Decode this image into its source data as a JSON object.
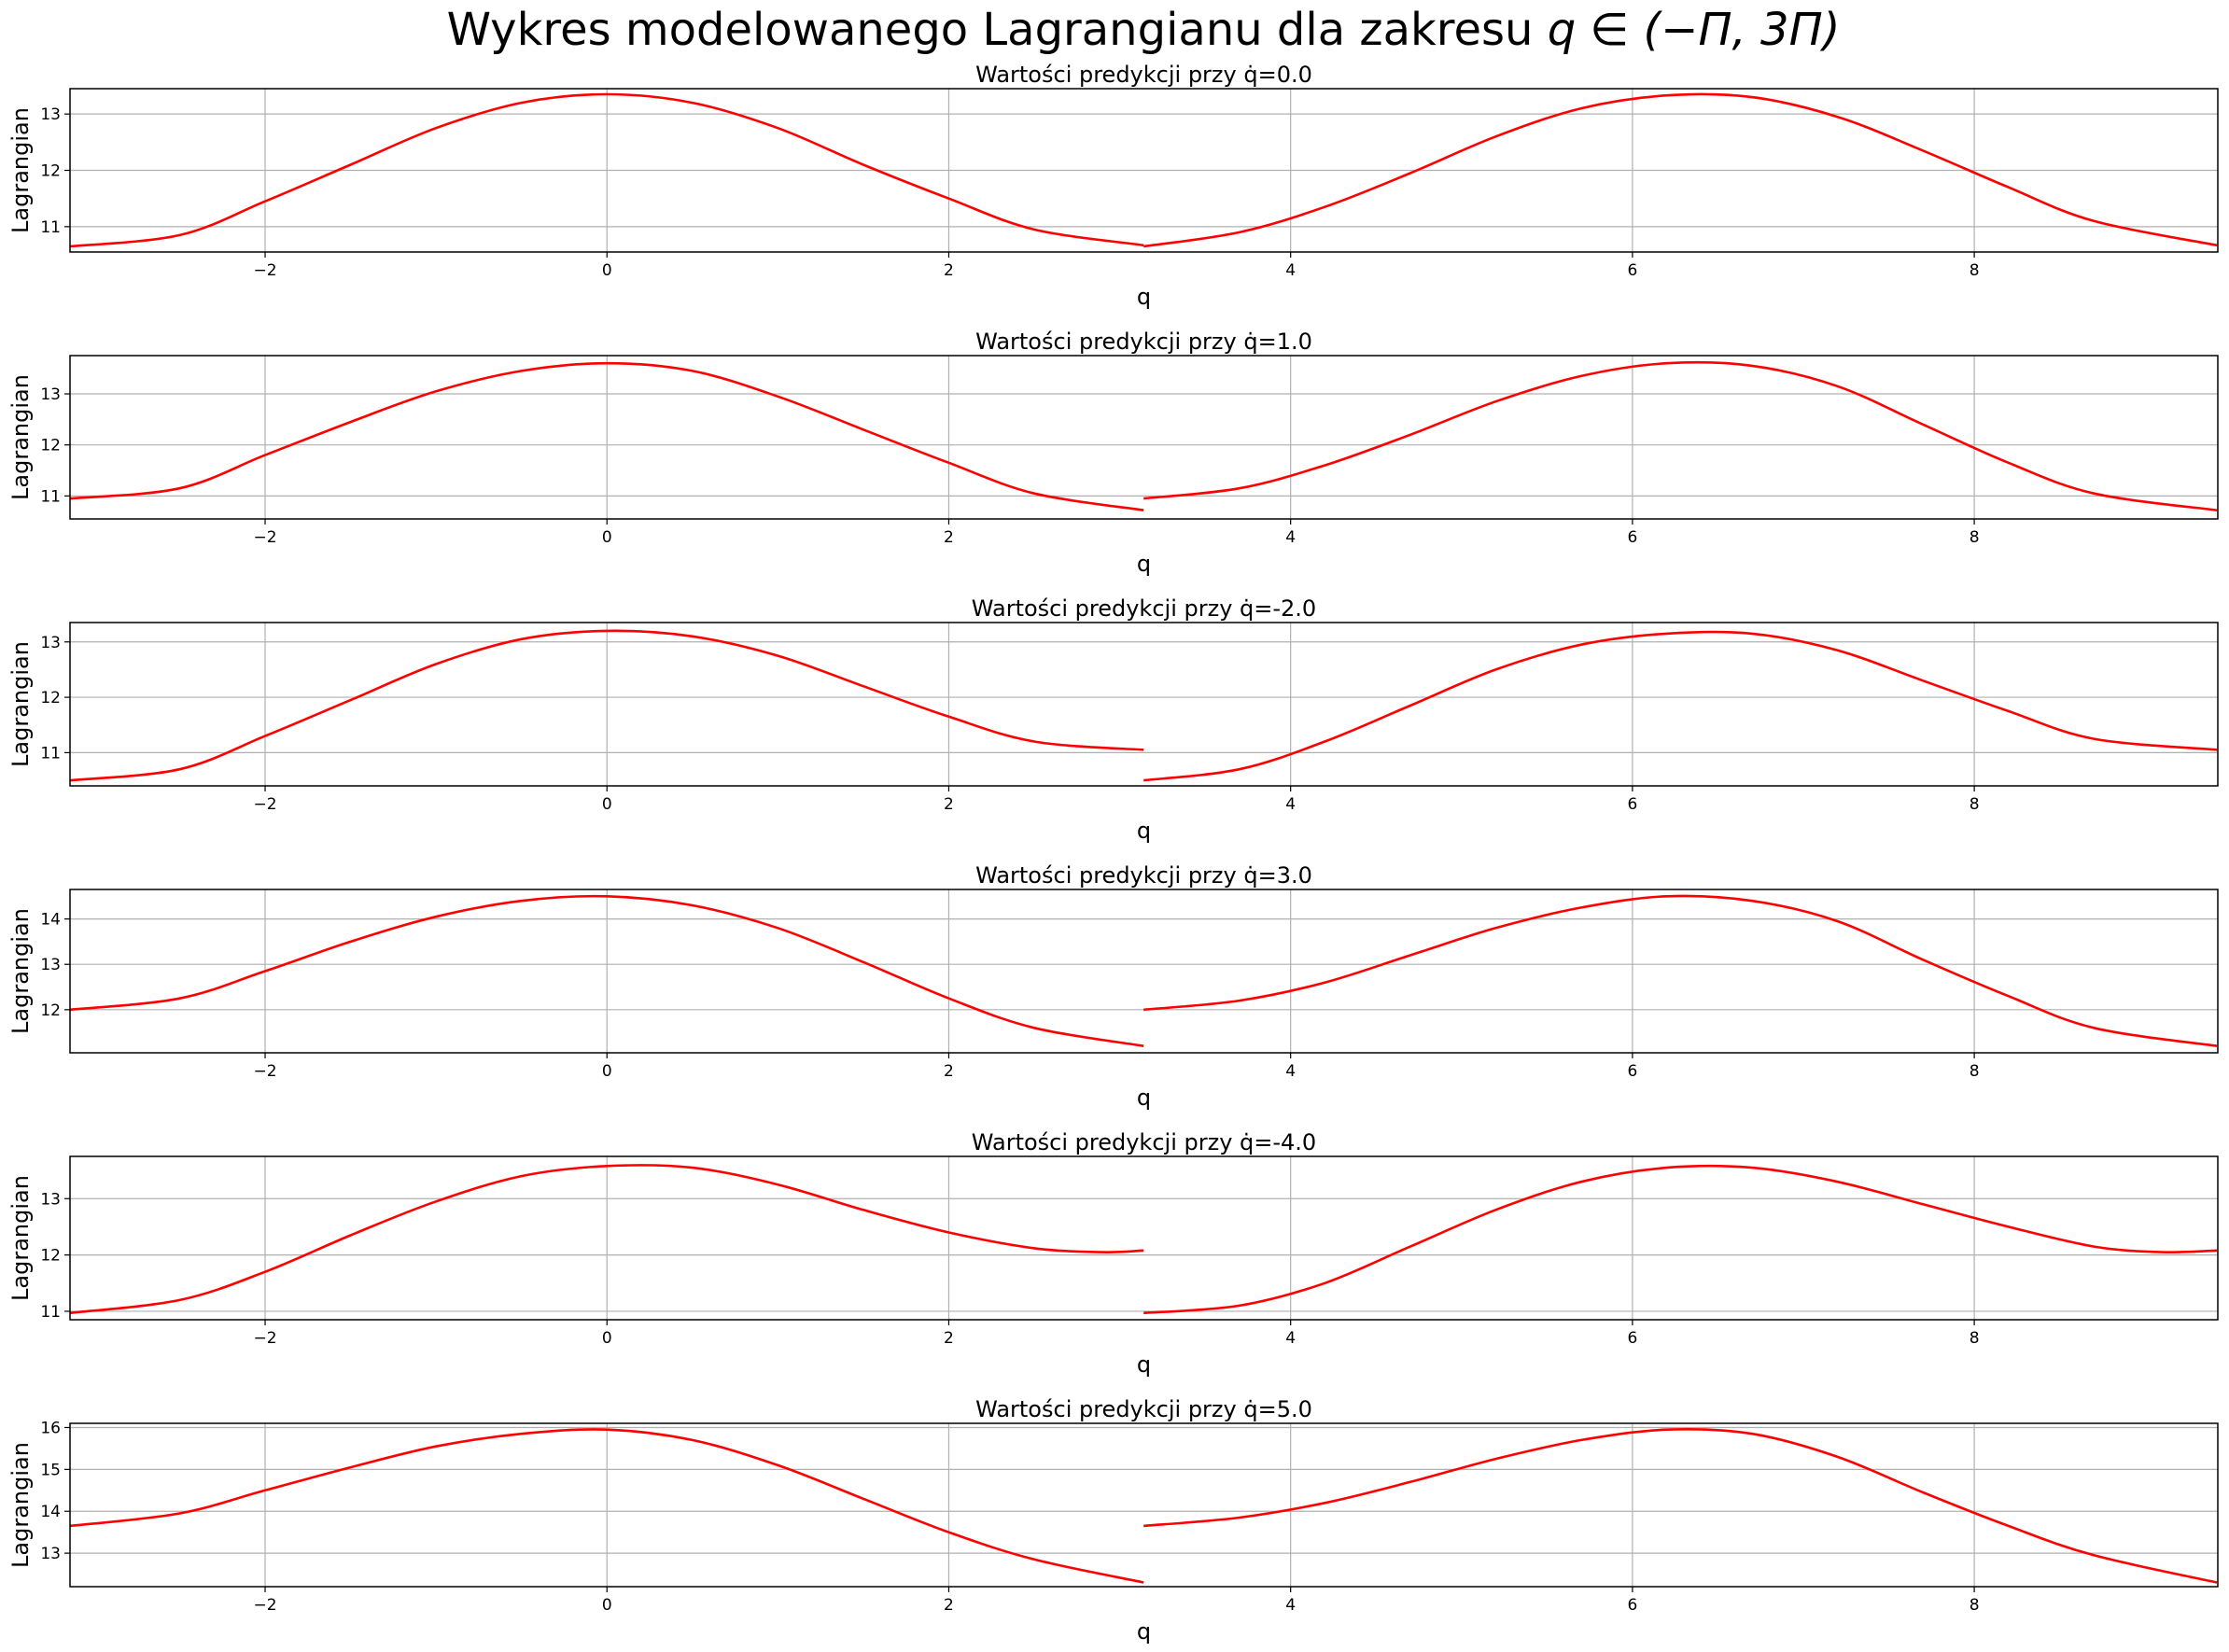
{
  "figure": {
    "title_prefix": "Wykres modelowanego Lagrangianu dla zakresu ",
    "title_math": "q ∈ (−Π, 3Π)",
    "line_color": "#ff0000"
  },
  "chart_data": [
    {
      "type": "line",
      "title": "Wartości predykcji przy q̇=0.0",
      "xlabel": "q",
      "ylabel": "Lagrangian",
      "xlim": [
        -3.1416,
        9.4248
      ],
      "ylim": [
        10.55,
        13.45
      ],
      "xticks": [
        -2,
        0,
        2,
        4,
        6,
        8
      ],
      "xtick_labels": [
        "−2",
        "0",
        "2",
        "4",
        "6",
        "8"
      ],
      "yticks": [
        11,
        12,
        13
      ],
      "ytick_labels": [
        "11",
        "12",
        "13"
      ],
      "grid": true,
      "legend": "none",
      "series": [
        {
          "x": [
            -3.14,
            -2.5,
            -2.0,
            -1.5,
            -1.0,
            -0.5,
            0.0,
            0.5,
            1.0,
            1.5,
            2.0,
            2.5,
            3.14
          ],
          "y": [
            10.65,
            10.85,
            11.45,
            12.1,
            12.75,
            13.2,
            13.35,
            13.2,
            12.75,
            12.1,
            11.5,
            10.95,
            10.67
          ]
        },
        {
          "x": [
            3.14,
            3.7,
            4.2,
            4.7,
            5.2,
            5.7,
            6.2,
            6.7,
            7.2,
            7.7,
            8.2,
            8.7,
            9.42
          ],
          "y": [
            10.65,
            10.9,
            11.35,
            11.95,
            12.6,
            13.1,
            13.33,
            13.3,
            12.95,
            12.35,
            11.7,
            11.1,
            10.67
          ]
        }
      ]
    },
    {
      "type": "line",
      "title": "Wartości predykcji przy q̇=1.0",
      "xlabel": "q",
      "ylabel": "Lagrangian",
      "xlim": [
        -3.1416,
        9.4248
      ],
      "ylim": [
        10.55,
        13.75
      ],
      "xticks": [
        -2,
        0,
        2,
        4,
        6,
        8
      ],
      "xtick_labels": [
        "−2",
        "0",
        "2",
        "4",
        "6",
        "8"
      ],
      "yticks": [
        11,
        12,
        13
      ],
      "ytick_labels": [
        "11",
        "12",
        "13"
      ],
      "grid": true,
      "legend": "none",
      "series": [
        {
          "x": [
            -3.14,
            -2.5,
            -2.0,
            -1.5,
            -1.0,
            -0.5,
            0.0,
            0.5,
            1.0,
            1.5,
            2.0,
            2.5,
            3.14
          ],
          "y": [
            10.95,
            11.15,
            11.8,
            12.45,
            13.05,
            13.45,
            13.6,
            13.45,
            12.95,
            12.3,
            11.65,
            11.05,
            10.72
          ]
        },
        {
          "x": [
            3.14,
            3.7,
            4.2,
            4.7,
            5.2,
            5.7,
            6.2,
            6.7,
            7.2,
            7.7,
            8.2,
            8.7,
            9.42
          ],
          "y": [
            10.95,
            11.15,
            11.6,
            12.2,
            12.85,
            13.35,
            13.6,
            13.55,
            13.15,
            12.4,
            11.65,
            11.05,
            10.72
          ]
        }
      ]
    },
    {
      "type": "line",
      "title": "Wartości predykcji przy q̇=-2.0",
      "xlabel": "q",
      "ylabel": "Lagrangian",
      "xlim": [
        -3.1416,
        9.4248
      ],
      "ylim": [
        10.4,
        13.35
      ],
      "xticks": [
        -2,
        0,
        2,
        4,
        6,
        8
      ],
      "xtick_labels": [
        "−2",
        "0",
        "2",
        "4",
        "6",
        "8"
      ],
      "yticks": [
        11,
        12,
        13
      ],
      "ytick_labels": [
        "11",
        "12",
        "13"
      ],
      "grid": true,
      "legend": "none",
      "series": [
        {
          "x": [
            -3.14,
            -2.5,
            -2.0,
            -1.5,
            -1.0,
            -0.5,
            0.0,
            0.5,
            1.0,
            1.5,
            2.0,
            2.5,
            3.14
          ],
          "y": [
            10.5,
            10.7,
            11.3,
            11.95,
            12.6,
            13.05,
            13.2,
            13.1,
            12.75,
            12.2,
            11.65,
            11.2,
            11.05
          ]
        },
        {
          "x": [
            3.14,
            3.7,
            4.2,
            4.7,
            5.2,
            5.7,
            6.2,
            6.7,
            7.2,
            7.7,
            8.2,
            8.7,
            9.42
          ],
          "y": [
            10.5,
            10.7,
            11.2,
            11.85,
            12.5,
            12.95,
            13.15,
            13.15,
            12.85,
            12.3,
            11.75,
            11.25,
            11.05
          ]
        }
      ]
    },
    {
      "type": "line",
      "title": "Wartości predykcji przy q̇=3.0",
      "xlabel": "q",
      "ylabel": "Lagrangian",
      "xlim": [
        -3.1416,
        9.4248
      ],
      "ylim": [
        11.05,
        14.65
      ],
      "xticks": [
        -2,
        0,
        2,
        4,
        6,
        8
      ],
      "xtick_labels": [
        "−2",
        "0",
        "2",
        "4",
        "6",
        "8"
      ],
      "yticks": [
        12,
        13,
        14
      ],
      "ytick_labels": [
        "12",
        "13",
        "14"
      ],
      "grid": true,
      "legend": "none",
      "series": [
        {
          "x": [
            -3.14,
            -2.5,
            -2.0,
            -1.5,
            -1.0,
            -0.5,
            0.0,
            0.5,
            1.0,
            1.5,
            2.0,
            2.5,
            3.14
          ],
          "y": [
            12.0,
            12.25,
            12.85,
            13.5,
            14.05,
            14.4,
            14.5,
            14.3,
            13.8,
            13.05,
            12.25,
            11.6,
            11.2
          ]
        },
        {
          "x": [
            3.14,
            3.7,
            4.2,
            4.7,
            5.2,
            5.7,
            6.2,
            6.7,
            7.2,
            7.7,
            8.2,
            8.7,
            9.42
          ],
          "y": [
            12.0,
            12.2,
            12.6,
            13.2,
            13.8,
            14.25,
            14.5,
            14.4,
            13.95,
            13.1,
            12.3,
            11.6,
            11.2
          ]
        }
      ]
    },
    {
      "type": "line",
      "title": "Wartości predykcji przy q̇=-4.0",
      "xlabel": "q",
      "ylabel": "Lagrangian",
      "xlim": [
        -3.1416,
        9.4248
      ],
      "ylim": [
        10.85,
        13.75
      ],
      "xticks": [
        -2,
        0,
        2,
        4,
        6,
        8
      ],
      "xtick_labels": [
        "−2",
        "0",
        "2",
        "4",
        "6",
        "8"
      ],
      "yticks": [
        11,
        12,
        13
      ],
      "ytick_labels": [
        "11",
        "12",
        "13"
      ],
      "grid": true,
      "legend": "none",
      "series": [
        {
          "x": [
            -3.14,
            -2.5,
            -2.0,
            -1.5,
            -1.0,
            -0.5,
            0.0,
            0.5,
            1.0,
            1.5,
            2.0,
            2.5,
            2.9,
            3.14
          ],
          "y": [
            10.97,
            11.2,
            11.7,
            12.35,
            12.95,
            13.4,
            13.58,
            13.55,
            13.25,
            12.8,
            12.4,
            12.12,
            12.05,
            12.08
          ]
        },
        {
          "x": [
            3.14,
            3.7,
            4.2,
            4.7,
            5.2,
            5.7,
            6.2,
            6.7,
            7.2,
            7.7,
            8.2,
            8.7,
            9.1,
            9.42
          ],
          "y": [
            10.97,
            11.1,
            11.5,
            12.15,
            12.8,
            13.3,
            13.55,
            13.55,
            13.3,
            12.9,
            12.5,
            12.15,
            12.05,
            12.08
          ]
        }
      ]
    },
    {
      "type": "line",
      "title": "Wartości predykcji przy q̇=5.0",
      "xlabel": "q",
      "ylabel": "Lagrangian",
      "xlim": [
        -3.1416,
        9.4248
      ],
      "ylim": [
        12.2,
        16.1
      ],
      "xticks": [
        -2,
        0,
        2,
        4,
        6,
        8
      ],
      "xtick_labels": [
        "−2",
        "0",
        "2",
        "4",
        "6",
        "8"
      ],
      "yticks": [
        13,
        14,
        15,
        16
      ],
      "ytick_labels": [
        "13",
        "14",
        "15",
        "16"
      ],
      "grid": true,
      "legend": "none",
      "series": [
        {
          "x": [
            -3.14,
            -2.5,
            -2.0,
            -1.5,
            -1.0,
            -0.5,
            0.0,
            0.5,
            1.0,
            1.5,
            2.0,
            2.5,
            3.14
          ],
          "y": [
            13.65,
            13.95,
            14.5,
            15.05,
            15.55,
            15.85,
            15.95,
            15.7,
            15.1,
            14.3,
            13.5,
            12.85,
            12.3
          ]
        },
        {
          "x": [
            3.14,
            3.7,
            4.2,
            4.7,
            5.2,
            5.7,
            6.2,
            6.7,
            7.2,
            7.7,
            8.2,
            8.7,
            9.42
          ],
          "y": [
            13.65,
            13.85,
            14.2,
            14.7,
            15.25,
            15.7,
            15.95,
            15.85,
            15.3,
            14.45,
            13.65,
            12.95,
            12.3
          ]
        }
      ]
    }
  ]
}
